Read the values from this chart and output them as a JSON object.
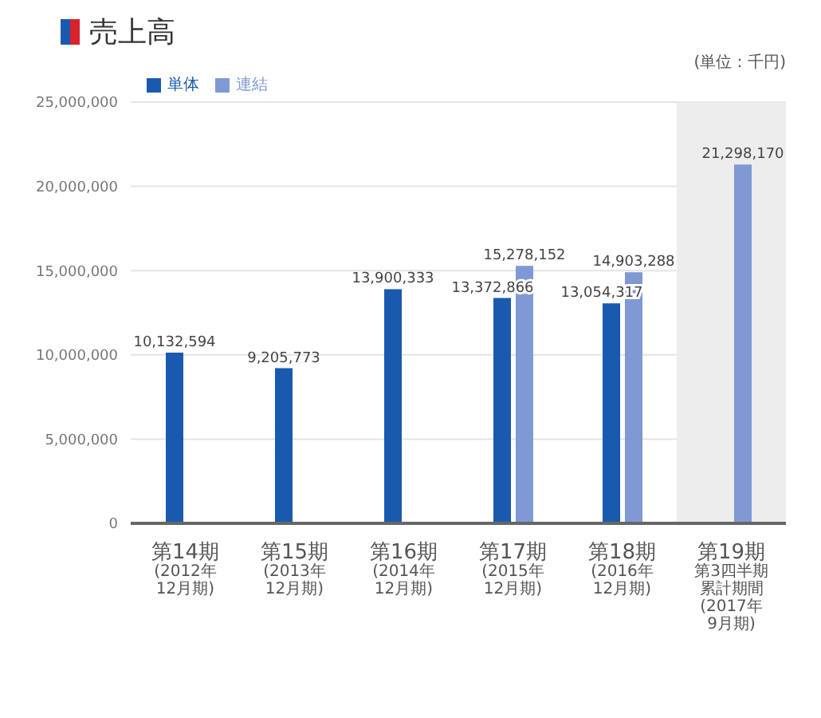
{
  "chart_data": {
    "type": "bar",
    "title": "売上高",
    "annotations": [
      "(単位：千円)"
    ],
    "categories": [
      "第14期\n(2012年\n12月期)",
      "第15期\n(2013年\n12月期)",
      "第16期\n(2014年\n12月期)",
      "第17期\n(2015年\n12月期)",
      "第18期\n(2016年\n12月期)",
      "第19期第3四半期累計期間\n(2017年\n9月期)"
    ],
    "series": [
      {
        "name": "単体",
        "color": "#1a5aae",
        "values": [
          10132594,
          9205773,
          13900333,
          13372866,
          13054317,
          null
        ],
        "value_labels": [
          "10,132,594",
          "9,205,773",
          "13,900,333",
          "13,372,866",
          "13,054,317",
          null
        ]
      },
      {
        "name": "連結",
        "color": "#7f99d4",
        "values": [
          null,
          null,
          null,
          15278152,
          14903288,
          21298170
        ],
        "value_labels": [
          null,
          null,
          null,
          "15,278,152",
          "14,903,288",
          "21,298,170"
        ]
      }
    ],
    "bands": [
      {
        "axis": "x",
        "from": "第19期第3四半期累計期間\n(2017年\n9月期)",
        "to": "第19期第3四半期累計期間\n(2017年\n9月期)",
        "color": "#ededed"
      }
    ],
    "ylim": [
      0,
      25000000
    ],
    "yticks": [
      {
        "value": 0,
        "label": "0"
      },
      {
        "value": 5000000,
        "label": "5,000,000"
      },
      {
        "value": 10000000,
        "label": "10,000,000"
      },
      {
        "value": 15000000,
        "label": "15,000,000"
      },
      {
        "value": 20000000,
        "label": "20,000,000"
      },
      {
        "value": 25000000,
        "label": "25,000,000"
      }
    ],
    "grid": "y",
    "legend": "top left"
  }
}
